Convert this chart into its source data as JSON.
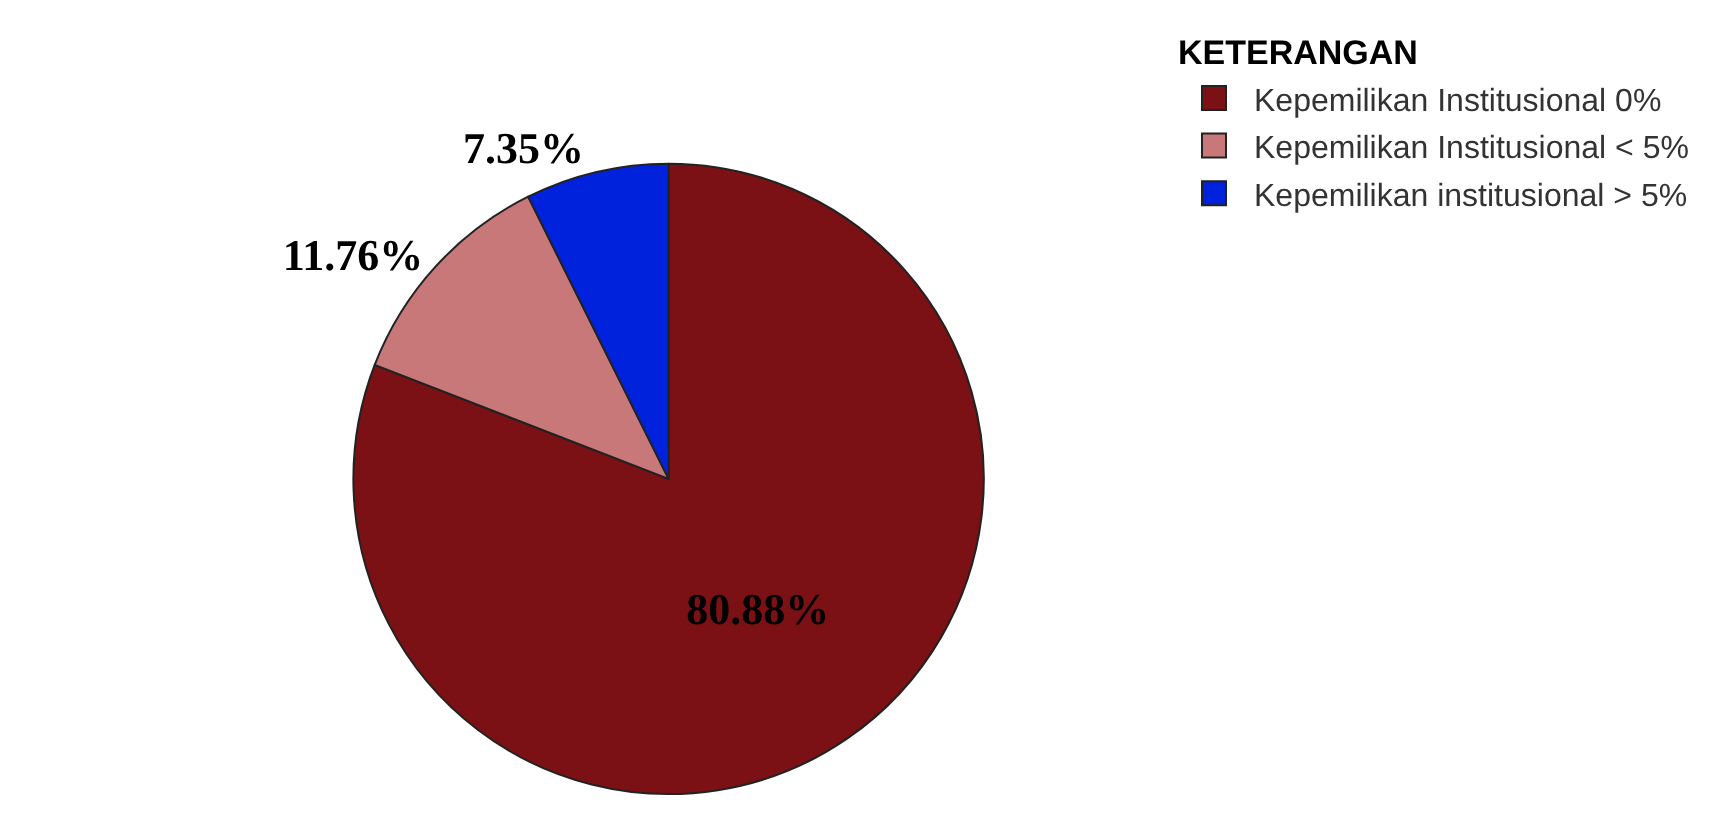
{
  "chart_data": {
    "type": "pie",
    "legend_title": "KETERANGAN",
    "legend": "top right",
    "categories": [
      "Kepemilikan Institusional 0%",
      "Kepemilikan Institusional < 5%",
      "Kepemilikan institusional > 5%"
    ],
    "values": [
      80.88,
      11.76,
      7.35
    ],
    "value_labels": [
      "80.88%",
      "11.76%",
      "7.35%"
    ],
    "colors": [
      "#7b1114",
      "#c87878",
      "#0022dd"
    ]
  }
}
